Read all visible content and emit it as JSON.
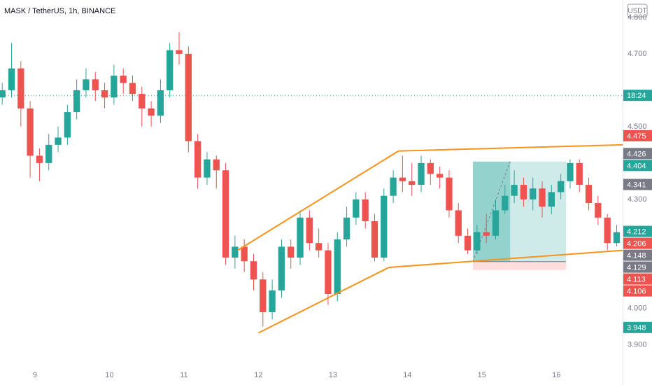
{
  "chart_data": {
    "type": "candlestick",
    "title": "MASK / TetherUS, 1h, BINANCE",
    "currency": "USDT",
    "up_color": "#26a69a",
    "down_color": "#ef5350",
    "grid": false,
    "xlim": [
      8.53,
      16.89
    ],
    "xticks": [
      9,
      10,
      11,
      12,
      13,
      14,
      15,
      16
    ],
    "ylim": [
      3.838,
      4.848
    ],
    "yticks": [
      {
        "value": 3.9,
        "label": "3.900"
      },
      {
        "value": 4.0,
        "label": "4.000"
      },
      {
        "value": 4.3,
        "label": "4.300"
      },
      {
        "value": 4.5,
        "label": "4.500"
      },
      {
        "value": 4.7,
        "label": "4.700"
      },
      {
        "value": 4.8,
        "label": "4.800"
      }
    ],
    "x": [
      8.56,
      8.685,
      8.81,
      8.935,
      9.06,
      9.185,
      9.31,
      9.435,
      9.56,
      9.685,
      9.81,
      9.935,
      10.06,
      10.185,
      10.31,
      10.435,
      10.56,
      10.685,
      10.81,
      10.935,
      11.06,
      11.185,
      11.31,
      11.435,
      11.56,
      11.685,
      11.81,
      11.935,
      12.06,
      12.185,
      12.31,
      12.435,
      12.56,
      12.685,
      12.81,
      12.935,
      13.06,
      13.185,
      13.31,
      13.435,
      13.56,
      13.685,
      13.81,
      13.935,
      14.06,
      14.185,
      14.31,
      14.435,
      14.56,
      14.685,
      14.81,
      14.935,
      15.06,
      15.185,
      15.31,
      15.435,
      15.56,
      15.685,
      15.81,
      15.935,
      16.06,
      16.185,
      16.31,
      16.435,
      16.56,
      16.685,
      16.81
    ],
    "open": [
      4.58,
      4.6,
      4.66,
      4.55,
      4.42,
      4.4,
      4.45,
      4.47,
      4.54,
      4.6,
      4.63,
      4.6,
      4.58,
      4.64,
      4.62,
      4.59,
      4.55,
      4.53,
      4.6,
      4.71,
      4.7,
      4.46,
      4.36,
      4.41,
      4.38,
      4.14,
      4.17,
      4.13,
      4.08,
      3.99,
      4.05,
      4.17,
      4.14,
      4.25,
      4.18,
      4.16,
      4.04,
      4.19,
      4.25,
      4.3,
      4.24,
      4.14,
      4.31,
      4.36,
      4.35,
      4.34,
      4.4,
      4.37,
      4.36,
      4.27,
      4.2,
      4.16,
      4.21,
      4.2,
      4.27,
      4.31,
      4.34,
      4.3,
      4.33,
      4.28,
      4.32,
      4.35,
      4.4,
      4.34,
      4.29,
      4.25,
      4.18
    ],
    "high": [
      4.62,
      4.73,
      4.68,
      4.57,
      4.44,
      4.48,
      4.5,
      4.56,
      4.63,
      4.66,
      4.65,
      4.62,
      4.67,
      4.66,
      4.64,
      4.61,
      4.57,
      4.63,
      4.73,
      4.76,
      4.72,
      4.48,
      4.43,
      4.42,
      4.4,
      4.2,
      4.19,
      4.15,
      4.1,
      4.08,
      4.19,
      4.19,
      4.27,
      4.27,
      4.22,
      4.18,
      4.21,
      4.28,
      4.32,
      4.32,
      4.26,
      4.33,
      4.38,
      4.42,
      4.4,
      4.42,
      4.41,
      4.39,
      4.38,
      4.29,
      4.22,
      4.23,
      4.26,
      4.3,
      4.34,
      4.38,
      4.36,
      4.36,
      4.35,
      4.34,
      4.37,
      4.41,
      4.41,
      4.36,
      4.31,
      4.26,
      4.23
    ],
    "low": [
      4.56,
      4.58,
      4.5,
      4.36,
      4.35,
      4.38,
      4.43,
      4.45,
      4.52,
      4.58,
      4.57,
      4.55,
      4.56,
      4.59,
      4.57,
      4.5,
      4.5,
      4.51,
      4.58,
      4.67,
      4.43,
      4.33,
      4.34,
      4.33,
      4.12,
      4.11,
      4.1,
      4.05,
      3.95,
      3.97,
      4.03,
      4.11,
      4.12,
      4.16,
      4.14,
      4.01,
      4.02,
      4.17,
      4.23,
      4.22,
      4.13,
      4.13,
      4.29,
      4.32,
      4.31,
      4.32,
      4.34,
      4.33,
      4.25,
      4.18,
      4.15,
      4.15,
      4.18,
      4.19,
      4.26,
      4.29,
      4.28,
      4.27,
      4.25,
      4.26,
      4.3,
      4.33,
      4.32,
      4.27,
      4.23,
      4.16,
      4.17
    ],
    "close": [
      4.6,
      4.66,
      4.55,
      4.42,
      4.4,
      4.45,
      4.47,
      4.54,
      4.6,
      4.63,
      4.6,
      4.58,
      4.64,
      4.62,
      4.59,
      4.55,
      4.53,
      4.6,
      4.71,
      4.7,
      4.46,
      4.36,
      4.41,
      4.38,
      4.14,
      4.17,
      4.13,
      4.08,
      3.99,
      4.05,
      4.17,
      4.14,
      4.25,
      4.18,
      4.16,
      4.04,
      4.19,
      4.25,
      4.3,
      4.24,
      4.14,
      4.31,
      4.36,
      4.35,
      4.34,
      4.4,
      4.37,
      4.36,
      4.27,
      4.2,
      4.16,
      4.21,
      4.2,
      4.27,
      4.31,
      4.34,
      4.3,
      4.33,
      4.28,
      4.32,
      4.35,
      4.4,
      4.34,
      4.29,
      4.25,
      4.18,
      4.21
    ],
    "hline": {
      "value": 4.586,
      "label": "18:24",
      "color": "#26a69a"
    },
    "trendlines": [
      [
        [
          11.72,
          4.16
        ],
        [
          13.88,
          4.433
        ]
      ],
      [
        [
          13.88,
          4.433
        ],
        [
          16.89,
          4.45
        ]
      ],
      [
        [
          12.0,
          3.933
        ],
        [
          13.75,
          4.113
        ]
      ],
      [
        [
          13.75,
          4.113
        ],
        [
          16.89,
          4.16
        ]
      ]
    ],
    "trend_color": "#f7931a",
    "position": {
      "start": 14.88,
      "split": 15.38,
      "end": 16.13,
      "entry": 4.129,
      "target": 4.404,
      "stop": 4.106
    },
    "price_labels": [
      {
        "value": 4.475,
        "label": "4.475",
        "color": "#ef5350"
      },
      {
        "value": 4.426,
        "label": "4.426",
        "color": "#787b86"
      },
      {
        "value": 4.404,
        "label": "4.404",
        "color": "#26a69a"
      },
      {
        "value": 4.341,
        "label": "4.341",
        "color": "#787b86"
      },
      {
        "value": 4.212,
        "label": "4.212",
        "color": "#26a69a"
      },
      {
        "value": 4.206,
        "label": "4.206",
        "color": "#ef5350"
      },
      {
        "value": 4.148,
        "label": "4.148",
        "color": "#787b86"
      },
      {
        "value": 4.129,
        "label": "4.129",
        "color": "#787b86"
      },
      {
        "value": 4.113,
        "label": "4.113",
        "color": "#ef5350"
      },
      {
        "value": 4.106,
        "label": "4.106",
        "color": "#ef5350"
      },
      {
        "value": 3.948,
        "label": "3.948",
        "color": "#26a69a"
      }
    ]
  }
}
